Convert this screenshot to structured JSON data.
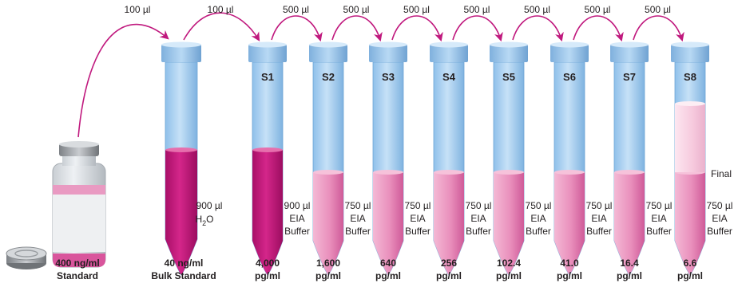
{
  "colors": {
    "arrow": "#c0197e",
    "liquid_dark": "#c2177a",
    "liquid_light": "#e687b4",
    "tube_blue": "#a9d1f1",
    "tube_blue_dark": "#6fa6d6",
    "text": "#231f20"
  },
  "transfers": [
    {
      "label": "100 µl"
    },
    {
      "label": "100 µl"
    },
    {
      "label": "500 µl"
    },
    {
      "label": "500 µl"
    },
    {
      "label": "500 µl"
    },
    {
      "label": "500 µl"
    },
    {
      "label": "500 µl"
    },
    {
      "label": "500 µl"
    },
    {
      "label": "500 µl"
    }
  ],
  "vial": {
    "conc_line1": "400 ng/ml",
    "conc_line2": "Standard"
  },
  "bulk": {
    "volume_line1": "900 µl",
    "volume_line2": "H",
    "volume_sub": "2",
    "volume_tail": "O",
    "conc_line1": "40 ng/ml",
    "conc_line2": "Bulk Standard"
  },
  "tubes": [
    {
      "name": "S1",
      "buffer": [
        "900 µl",
        "EIA",
        "Buffer"
      ],
      "conc_value": "4,000",
      "conc_unit": "pg/ml"
    },
    {
      "name": "S2",
      "buffer": [
        "750 µl",
        "EIA",
        "Buffer"
      ],
      "conc_value": "1,600",
      "conc_unit": "pg/ml"
    },
    {
      "name": "S3",
      "buffer": [
        "750 µl",
        "EIA",
        "Buffer"
      ],
      "conc_value": "640",
      "conc_unit": "pg/ml"
    },
    {
      "name": "S4",
      "buffer": [
        "750 µl",
        "EIA",
        "Buffer"
      ],
      "conc_value": "256",
      "conc_unit": "pg/ml"
    },
    {
      "name": "S5",
      "buffer": [
        "750 µl",
        "EIA",
        "Buffer"
      ],
      "conc_value": "102.4",
      "conc_unit": "pg/ml"
    },
    {
      "name": "S6",
      "buffer": [
        "750 µl",
        "EIA",
        "Buffer"
      ],
      "conc_value": "41.0",
      "conc_unit": "pg/ml"
    },
    {
      "name": "S7",
      "buffer": [
        "750 µl",
        "EIA",
        "Buffer"
      ],
      "conc_value": "16.4",
      "conc_unit": "pg/ml"
    },
    {
      "name": "S8",
      "buffer": [
        "750 µl",
        "EIA",
        "Buffer"
      ],
      "conc_value": "6.6",
      "conc_unit": "pg/ml"
    }
  ],
  "final_label": "Final"
}
